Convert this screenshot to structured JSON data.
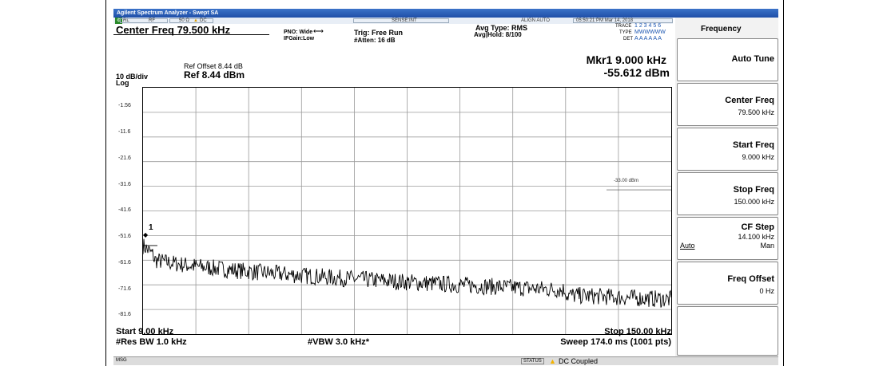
{
  "window": {
    "title": "Agilent Spectrum Analyzer - Swept SA"
  },
  "info_bar": {
    "rl": "RL",
    "rf": "RF",
    "impedance": "50 Ω",
    "dc": "DC",
    "sense": "SENSE:INT",
    "align": "ALIGN AUTO",
    "datetime": "05:50:21 PM Mar 14, 2018"
  },
  "header": {
    "center_freq": "Center Freq 79.500 kHz",
    "pno": "PNO: Wide",
    "ifgain": "IFGain:Low",
    "trig": "Trig: Free Run",
    "atten": "#Atten: 16 dB",
    "avg_type": "Avg Type: RMS",
    "avg_hold": "Avg|Hold: 8/100",
    "trace_label": "TRACE",
    "trace_nums": "1 2 3 4 5 6",
    "type_label": "TYPE",
    "type_val": "MWWWWW",
    "det_label": "DET",
    "det_val": "A A A A A A",
    "ref_offset": "Ref Offset 8.44 dB",
    "ref_level": "Ref 8.44 dBm",
    "scale": "10 dB/div",
    "log": "Log",
    "marker_freq": "Mkr1 9.000 kHz",
    "marker_amp": "-55.612 dBm"
  },
  "plot": {
    "y_ticks": [
      "-1.56",
      "-11.6",
      "-21.6",
      "-31.6",
      "-41.6",
      "-51.6",
      "-61.6",
      "-71.6",
      "-81.6"
    ],
    "limit_label": "-33.00 dBm",
    "marker_number": "1"
  },
  "footer": {
    "start": "Start 9.00 kHz",
    "stop": "Stop 150.00 kHz",
    "res_bw": "#Res BW 1.0 kHz",
    "vbw": "#VBW 3.0 kHz*",
    "sweep": "Sweep  174.0 ms (1001 pts)"
  },
  "softkeys": {
    "menu_title": "Frequency",
    "auto_tune": "Auto Tune",
    "center_freq_label": "Center Freq",
    "center_freq_value": "79.500 kHz",
    "start_freq_label": "Start Freq",
    "start_freq_value": "9.000 kHz",
    "stop_freq_label": "Stop Freq",
    "stop_freq_value": "150.000 kHz",
    "cf_step_label": "CF Step",
    "cf_step_value": "14.100 kHz",
    "cf_step_auto": "Auto",
    "cf_step_man": "Man",
    "freq_offset_label": "Freq Offset",
    "freq_offset_value": "0 Hz"
  },
  "status_bar": {
    "msg": "MSG",
    "status": "STATUS",
    "text": "DC Coupled"
  },
  "colors": {
    "trace": "#000000",
    "titlebar": "#2a5db5",
    "warning": "#f2b200"
  }
}
